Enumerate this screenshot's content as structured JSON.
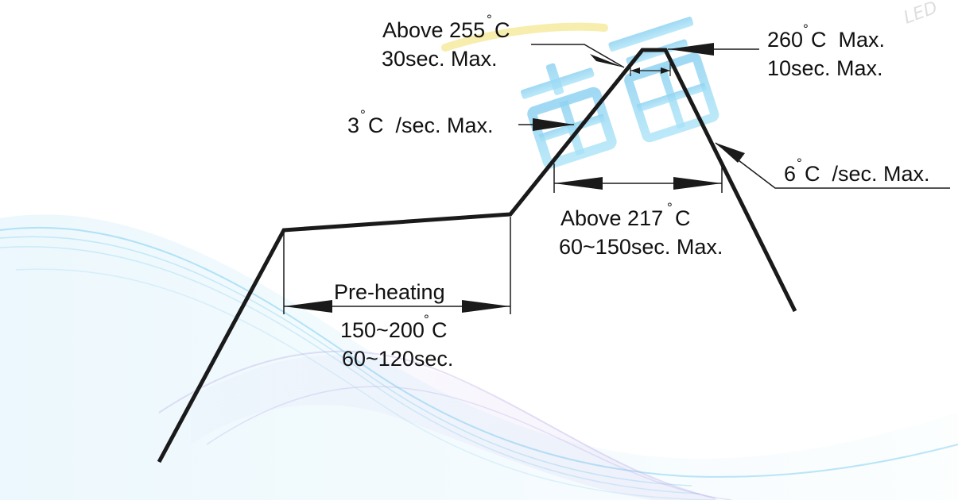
{
  "colors": {
    "line": "#1a1a1a",
    "text": "#111111",
    "wave_blue": "#3fb6e8",
    "wave_purple": "#b7a6e6",
    "wave_yellow": "#f3e58a"
  },
  "watermark": {
    "logo_text": "雷霆",
    "corner_text": "LED"
  },
  "labels": {
    "peak_time": {
      "line1": "Above 255",
      "line1_unit": "C",
      "line1_deg": "°",
      "line2": "30sec. Max."
    },
    "peak_temp": {
      "line1": "260",
      "line1_unit": "C  Max.",
      "line1_deg": "°",
      "line2": "10sec. Max."
    },
    "ramp_up": {
      "value": "3",
      "deg": "°",
      "unit": "C  /sec. Max."
    },
    "ramp_down": {
      "value": "6",
      "deg": "°",
      "unit": "C  /sec. Max."
    },
    "liquidus": {
      "line1": "Above 217",
      "line1_deg": "°",
      "line1_unit": "C",
      "line2": "60~150sec. Max."
    },
    "preheat": {
      "title": "Pre-heating",
      "line1": "150~200",
      "line1_deg": "°",
      "line1_unit": "C",
      "line2": "60~120sec."
    }
  }
}
